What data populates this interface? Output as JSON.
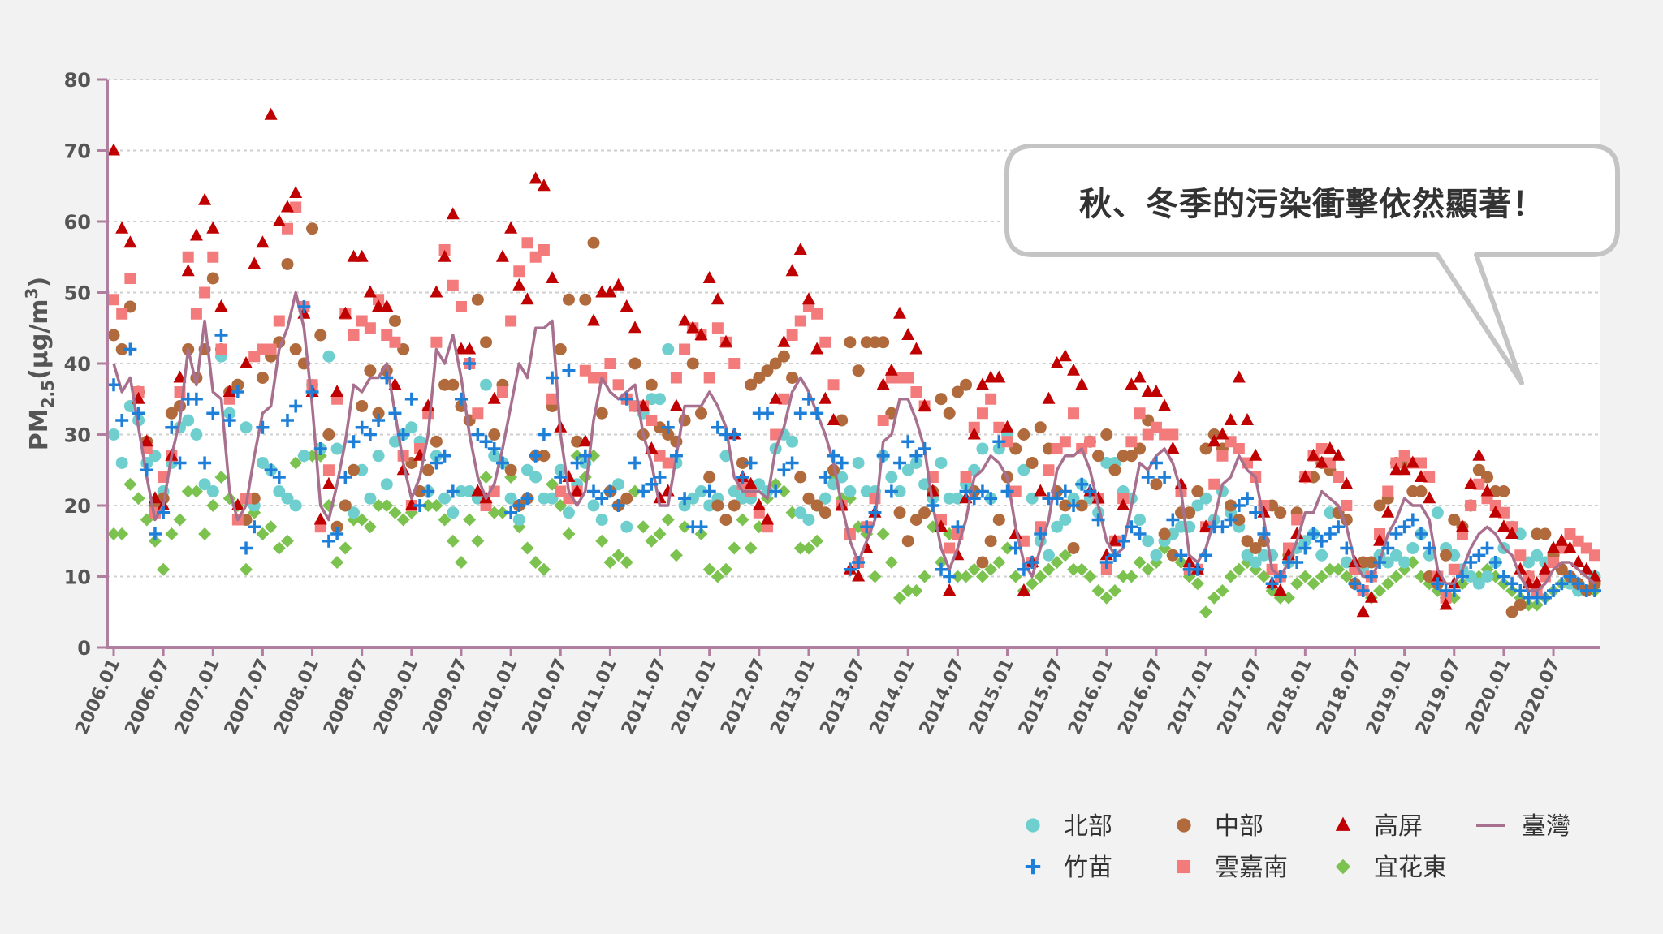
{
  "chart_data": {
    "type": "scatter",
    "ylabel": "PM2.5(μg/m3)",
    "ylabel_parts": {
      "main": "PM",
      "sub": "2.5",
      "open": "(μg/m",
      "sup": "3",
      "close": ")"
    },
    "ylim": [
      0,
      80
    ],
    "yticks": [
      "0",
      "10",
      "20",
      "30",
      "40",
      "50",
      "60",
      "70",
      "80"
    ],
    "xticks": [
      "2006.01",
      "2006.07",
      "2007.01",
      "2007.07",
      "2008.01",
      "2008.07",
      "2009.01",
      "2009.07",
      "2010.01",
      "2010.07",
      "2011.01",
      "2011.07",
      "2012.01",
      "2012.07",
      "2013.01",
      "2013.07",
      "2014.01",
      "2014.07",
      "2015.01",
      "2015.07",
      "2016.01",
      "2016.07",
      "2017.01",
      "2017.07",
      "2018.01",
      "2018.07",
      "2019.01",
      "2019.07",
      "2020.01",
      "2020.07"
    ],
    "grid": "horizontal-dashed",
    "legend_position": "bottom-right",
    "annotation": "秋、冬季的污染衝擊依然顯著！",
    "months": 180,
    "series": [
      {
        "name": "北部",
        "marker": "circle",
        "color": "#6fcfcf",
        "values": [
          30,
          26,
          34,
          32,
          26,
          27,
          22,
          26,
          31,
          32,
          30,
          23,
          22,
          41,
          33,
          37,
          31,
          20,
          26,
          25,
          22,
          21,
          20,
          27,
          37,
          28,
          41,
          28,
          20,
          19,
          25,
          21,
          27,
          23,
          29,
          30,
          31,
          29,
          22,
          27,
          21,
          19,
          22,
          22,
          21,
          37,
          27,
          26,
          21,
          18,
          25,
          24,
          21,
          21,
          25,
          19,
          23,
          26,
          20,
          18,
          22,
          23,
          17,
          34,
          33,
          35,
          35,
          42,
          26,
          20,
          21,
          22,
          20,
          21,
          27,
          22,
          21,
          21,
          23,
          22,
          28,
          30,
          29,
          19,
          18,
          20,
          21,
          23,
          24,
          22,
          26,
          22,
          22,
          27,
          24,
          22,
          25,
          26,
          23,
          21,
          26,
          21,
          21,
          23,
          25,
          28,
          21,
          28,
          30,
          28,
          25,
          21,
          15,
          13,
          17,
          18,
          21,
          23,
          21,
          19,
          26,
          26,
          22,
          21,
          18,
          15,
          13,
          15,
          16,
          17,
          17,
          20,
          21,
          18,
          22,
          19,
          17,
          13,
          12,
          13,
          13,
          10,
          12,
          14,
          15,
          16,
          13,
          19,
          19,
          12,
          11,
          11,
          12,
          13,
          12,
          13,
          12,
          14,
          16,
          13,
          19,
          14,
          13,
          11,
          10,
          9,
          10,
          12,
          14,
          17,
          16,
          12,
          13,
          12,
          13,
          11,
          9,
          8,
          8,
          10
        ]
      },
      {
        "name": "中部",
        "marker": "circle",
        "color": "#b06a3b",
        "values": [
          44,
          42,
          48,
          36,
          29,
          20,
          21,
          33,
          34,
          42,
          38,
          42,
          52,
          42,
          36,
          37,
          18,
          21,
          38,
          41,
          43,
          54,
          42,
          40,
          59,
          44,
          30,
          17,
          20,
          25,
          34,
          39,
          33,
          39,
          46,
          42,
          26,
          22,
          25,
          29,
          37,
          37,
          34,
          32,
          49,
          43,
          30,
          37,
          25,
          20,
          21,
          27,
          27,
          34,
          42,
          49,
          29,
          49,
          57,
          33,
          22,
          20,
          21,
          40,
          30,
          37,
          31,
          30,
          29,
          32,
          40,
          33,
          24,
          20,
          18,
          20,
          26,
          37,
          38,
          39,
          40,
          41,
          38,
          24,
          21,
          20,
          19,
          25,
          32,
          43,
          39,
          43,
          43,
          43,
          33,
          19,
          15,
          18,
          19,
          22,
          35,
          33,
          36,
          37,
          22,
          12,
          15,
          18,
          24,
          28,
          30,
          26,
          31,
          28,
          22,
          20,
          14,
          20,
          29,
          27,
          30,
          25,
          27,
          27,
          28,
          32,
          23,
          16,
          13,
          19,
          19,
          22,
          28,
          30,
          28,
          20,
          18,
          15,
          14,
          15,
          20,
          19,
          13,
          19,
          24,
          24,
          26,
          25,
          19,
          18,
          9,
          12,
          12,
          20,
          21,
          26,
          26,
          22,
          22,
          10,
          9,
          13,
          18,
          17,
          20,
          25,
          24,
          22,
          22,
          5,
          6,
          10,
          16,
          16,
          13,
          11,
          10,
          9,
          8,
          9
        ]
      },
      {
        "name": "高屏",
        "marker": "triangle",
        "color": "#c00000",
        "values": [
          70,
          59,
          57,
          35,
          29,
          21,
          20,
          27,
          38,
          53,
          58,
          63,
          59,
          48,
          36,
          20,
          40,
          54,
          57,
          75,
          60,
          62,
          64,
          47,
          36,
          18,
          23,
          36,
          47,
          55,
          55,
          50,
          48,
          48,
          37,
          25,
          20,
          27,
          34,
          50,
          55,
          61,
          42,
          42,
          22,
          21,
          35,
          55,
          59,
          51,
          49,
          66,
          65,
          52,
          31,
          24,
          22,
          29,
          46,
          50,
          50,
          51,
          48,
          45,
          34,
          28,
          21,
          22,
          34,
          46,
          45,
          44,
          52,
          49,
          43,
          30,
          24,
          23,
          20,
          18,
          35,
          43,
          53,
          56,
          49,
          42,
          35,
          32,
          20,
          11,
          10,
          14,
          19,
          37,
          39,
          47,
          44,
          42,
          34,
          22,
          17,
          8,
          13,
          21,
          30,
          37,
          38,
          38,
          31,
          16,
          8,
          12,
          22,
          35,
          40,
          41,
          39,
          37,
          22,
          21,
          13,
          15,
          20,
          37,
          38,
          36,
          36,
          34,
          28,
          23,
          12,
          11,
          17,
          29,
          30,
          32,
          38,
          32,
          27,
          19,
          9,
          8,
          13,
          16,
          24,
          27,
          26,
          28,
          27,
          23,
          12,
          5,
          7,
          15,
          19,
          25,
          25,
          26,
          24,
          21,
          10,
          6,
          9,
          17,
          23,
          27,
          22,
          19,
          17,
          16,
          11,
          9,
          9,
          11,
          14,
          15,
          14,
          12,
          11,
          10
        ]
      },
      {
        "name": "臺灣",
        "marker": "line",
        "color": "#a8708f",
        "values": [
          40,
          36,
          38,
          31,
          24,
          18,
          20,
          27,
          32,
          42,
          37,
          46,
          36,
          35,
          22,
          18,
          20,
          27,
          33,
          34,
          42,
          45,
          50,
          45,
          34,
          20,
          18,
          23,
          29,
          37,
          36,
          38,
          38,
          40,
          33,
          26,
          21,
          24,
          30,
          42,
          40,
          44,
          38,
          30,
          24,
          21,
          23,
          28,
          34,
          40,
          38,
          45,
          45,
          46,
          30,
          22,
          20,
          22,
          32,
          38,
          36,
          35,
          36,
          37,
          30,
          26,
          20,
          20,
          27,
          34,
          34,
          34,
          36,
          34,
          31,
          24,
          22,
          22,
          22,
          21,
          28,
          31,
          36,
          38,
          36,
          33,
          30,
          26,
          20,
          15,
          12,
          15,
          18,
          29,
          30,
          35,
          35,
          32,
          28,
          20,
          14,
          11,
          14,
          18,
          24,
          25,
          27,
          26,
          24,
          17,
          12,
          10,
          14,
          18,
          25,
          27,
          27,
          28,
          25,
          20,
          15,
          13,
          14,
          20,
          26,
          25,
          27,
          28,
          26,
          22,
          13,
          12,
          14,
          18,
          23,
          24,
          27,
          25,
          24,
          18,
          11,
          10,
          12,
          15,
          19,
          19,
          22,
          21,
          20,
          17,
          12,
          10,
          10,
          12,
          16,
          18,
          21,
          20,
          20,
          18,
          11,
          9,
          9,
          11,
          14,
          16,
          17,
          16,
          14,
          13,
          10,
          8,
          8,
          9,
          11,
          12,
          12,
          11,
          10,
          9
        ]
      },
      {
        "name": "竹苗",
        "marker": "plus",
        "color": "#1e7fd8",
        "values": [
          37,
          32,
          42,
          33,
          25,
          16,
          19,
          31,
          26,
          35,
          35,
          26,
          33,
          44,
          32,
          36,
          14,
          17,
          31,
          25,
          24,
          32,
          34,
          48,
          36,
          28,
          15,
          16,
          24,
          29,
          31,
          30,
          32,
          38,
          33,
          30,
          35,
          20,
          22,
          26,
          27,
          22,
          35,
          40,
          30,
          29,
          28,
          26,
          19,
          20,
          21,
          27,
          30,
          38,
          24,
          39,
          26,
          27,
          22,
          21,
          22,
          20,
          35,
          26,
          22,
          23,
          24,
          31,
          27,
          21,
          17,
          17,
          22,
          31,
          30,
          30,
          24,
          26,
          33,
          33,
          22,
          25,
          26,
          33,
          35,
          33,
          24,
          27,
          26,
          11,
          12,
          17,
          19,
          27,
          22,
          26,
          29,
          27,
          28,
          20,
          11,
          10,
          17,
          22,
          21,
          22,
          21,
          29,
          22,
          14,
          11,
          12,
          16,
          21,
          21,
          22,
          20,
          23,
          22,
          18,
          12,
          13,
          15,
          17,
          16,
          24,
          26,
          24,
          18,
          13,
          11,
          11,
          13,
          17,
          17,
          18,
          20,
          21,
          19,
          16,
          9,
          10,
          12,
          12,
          14,
          16,
          15,
          16,
          17,
          14,
          9,
          8,
          10,
          12,
          14,
          16,
          17,
          18,
          16,
          14,
          9,
          8,
          8,
          10,
          12,
          13,
          14,
          12,
          10,
          9,
          8,
          7,
          7,
          7,
          8,
          9,
          10,
          9,
          8,
          8
        ]
      },
      {
        "name": "雲嘉南",
        "marker": "square",
        "color": "#f47b7b",
        "values": [
          49,
          47,
          52,
          36,
          28,
          19,
          24,
          27,
          36,
          55,
          47,
          50,
          55,
          42,
          35,
          18,
          21,
          41,
          42,
          42,
          46,
          59,
          62,
          48,
          37,
          17,
          25,
          35,
          47,
          44,
          46,
          45,
          49,
          44,
          43,
          27,
          20,
          28,
          33,
          43,
          56,
          51,
          48,
          40,
          33,
          20,
          22,
          36,
          46,
          53,
          57,
          55,
          56,
          35,
          22,
          21,
          22,
          39,
          38,
          38,
          40,
          37,
          35,
          34,
          34,
          32,
          27,
          26,
          38,
          42,
          45,
          44,
          38,
          45,
          43,
          40,
          23,
          22,
          19,
          17,
          30,
          35,
          44,
          46,
          48,
          47,
          43,
          37,
          20,
          16,
          12,
          17,
          21,
          32,
          38,
          38,
          38,
          36,
          34,
          24,
          18,
          14,
          16,
          24,
          31,
          33,
          35,
          31,
          29,
          22,
          15,
          12,
          17,
          25,
          28,
          29,
          33,
          28,
          29,
          21,
          11,
          15,
          21,
          29,
          33,
          30,
          31,
          30,
          30,
          22,
          11,
          11,
          17,
          23,
          27,
          29,
          28,
          26,
          24,
          20,
          11,
          10,
          14,
          18,
          24,
          27,
          28,
          26,
          24,
          20,
          11,
          8,
          10,
          16,
          22,
          26,
          27,
          26,
          26,
          24,
          10,
          7,
          11,
          16,
          20,
          23,
          21,
          20,
          19,
          17,
          13,
          10,
          8,
          10,
          12,
          14,
          16,
          15,
          14,
          13
        ]
      },
      {
        "name": "宜花東",
        "marker": "diamond",
        "color": "#7cc24f",
        "values": [
          16,
          16,
          23,
          21,
          18,
          15,
          11,
          16,
          18,
          22,
          22,
          16,
          20,
          24,
          21,
          20,
          11,
          19,
          16,
          17,
          14,
          15,
          26,
          27,
          27,
          27,
          20,
          12,
          14,
          18,
          18,
          17,
          20,
          20,
          19,
          18,
          19,
          22,
          20,
          20,
          18,
          15,
          12,
          18,
          15,
          24,
          19,
          19,
          24,
          17,
          14,
          12,
          11,
          23,
          20,
          16,
          27,
          24,
          27,
          15,
          12,
          13,
          12,
          22,
          17,
          15,
          16,
          18,
          13,
          17,
          21,
          16,
          11,
          10,
          11,
          14,
          18,
          14,
          17,
          21,
          23,
          22,
          19,
          14,
          14,
          15,
          21,
          24,
          21,
          21,
          17,
          16,
          10,
          16,
          12,
          7,
          8,
          8,
          10,
          17,
          12,
          16,
          10,
          10,
          11,
          10,
          11,
          12,
          14,
          10,
          8,
          9,
          10,
          11,
          12,
          13,
          11,
          11,
          10,
          8,
          7,
          8,
          10,
          10,
          12,
          11,
          12,
          14,
          13,
          12,
          10,
          9,
          5,
          7,
          8,
          10,
          11,
          12,
          11,
          10,
          8,
          7,
          7,
          9,
          10,
          9,
          10,
          11,
          11,
          10,
          9,
          8,
          7,
          8,
          9,
          10,
          11,
          12,
          10,
          9,
          8,
          7,
          7,
          9,
          10,
          10,
          11,
          10,
          9,
          8,
          7,
          6,
          6,
          7,
          8,
          9,
          9,
          8,
          8,
          8
        ]
      }
    ],
    "legend_order": [
      "北部",
      "中部",
      "高屏",
      "臺灣",
      "竹苗",
      "雲嘉南",
      "宜花東"
    ]
  }
}
